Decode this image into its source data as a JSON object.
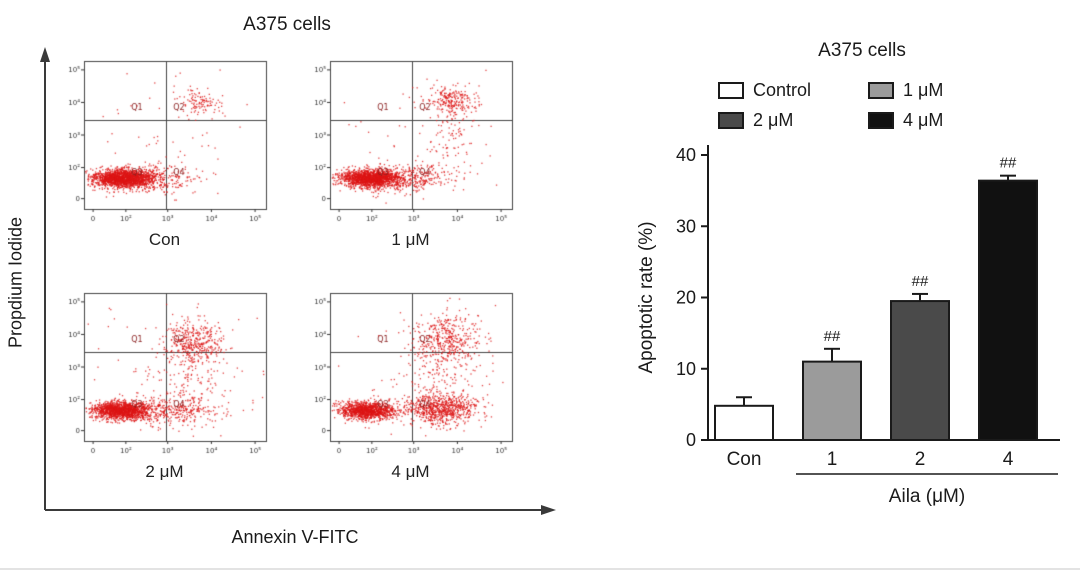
{
  "chart_data": [
    {
      "type": "scatter",
      "title": "A375 cells",
      "xlabel": "Annexin V-FITC",
      "ylabel": "Propdium Iodide",
      "x_ticks": [
        "0",
        "10²",
        "10³",
        "10⁴",
        "10⁵"
      ],
      "y_ticks": [
        "0",
        "10²",
        "10³",
        "10⁴",
        "10⁵"
      ],
      "quadrants": [
        "Q1",
        "Q2",
        "Q3",
        "Q4"
      ],
      "point_color": "#dd1515",
      "subplots": [
        {
          "label": "Con",
          "clusters": [
            {
              "x": 0.21,
              "y": 0.79,
              "sx": 0.085,
              "sy": 0.03,
              "n": 1700
            },
            {
              "x": 0.38,
              "y": 0.79,
              "sx": 0.1,
              "sy": 0.045,
              "n": 260
            },
            {
              "x": 0.63,
              "y": 0.28,
              "sx": 0.055,
              "sy": 0.045,
              "n": 110
            },
            {
              "x": 0.5,
              "y": 0.52,
              "sx": 0.27,
              "sy": 0.26,
              "n": 70
            }
          ]
        },
        {
          "label": "1 μM",
          "clusters": [
            {
              "x": 0.22,
              "y": 0.79,
              "sx": 0.085,
              "sy": 0.03,
              "n": 1600
            },
            {
              "x": 0.44,
              "y": 0.79,
              "sx": 0.12,
              "sy": 0.05,
              "n": 320
            },
            {
              "x": 0.67,
              "y": 0.27,
              "sx": 0.07,
              "sy": 0.05,
              "n": 230
            },
            {
              "x": 0.66,
              "y": 0.5,
              "sx": 0.07,
              "sy": 0.16,
              "n": 90
            },
            {
              "x": 0.5,
              "y": 0.52,
              "sx": 0.27,
              "sy": 0.26,
              "n": 60
            }
          ]
        },
        {
          "label": "2 μM",
          "clusters": [
            {
              "x": 0.2,
              "y": 0.79,
              "sx": 0.08,
              "sy": 0.03,
              "n": 1400
            },
            {
              "x": 0.47,
              "y": 0.79,
              "sx": 0.13,
              "sy": 0.05,
              "n": 380
            },
            {
              "x": 0.6,
              "y": 0.33,
              "sx": 0.08,
              "sy": 0.075,
              "n": 380
            },
            {
              "x": 0.58,
              "y": 0.55,
              "sx": 0.09,
              "sy": 0.15,
              "n": 140
            },
            {
              "x": 0.5,
              "y": 0.5,
              "sx": 0.28,
              "sy": 0.27,
              "n": 60
            }
          ]
        },
        {
          "label": "4 μM",
          "clusters": [
            {
              "x": 0.2,
              "y": 0.79,
              "sx": 0.078,
              "sy": 0.03,
              "n": 1200
            },
            {
              "x": 0.6,
              "y": 0.78,
              "sx": 0.105,
              "sy": 0.05,
              "n": 750
            },
            {
              "x": 0.63,
              "y": 0.31,
              "sx": 0.09,
              "sy": 0.085,
              "n": 380
            },
            {
              "x": 0.62,
              "y": 0.54,
              "sx": 0.1,
              "sy": 0.16,
              "n": 170
            },
            {
              "x": 0.5,
              "y": 0.5,
              "sx": 0.28,
              "sy": 0.27,
              "n": 70
            }
          ]
        }
      ]
    },
    {
      "type": "bar",
      "title": "A375 cells",
      "ylabel": "Apoptotic rate (%)",
      "ylim": [
        0,
        40
      ],
      "yticks": [
        0,
        10,
        20,
        30,
        40
      ],
      "categories": [
        "Con",
        "1",
        "2",
        "4"
      ],
      "values": [
        4.8,
        11.0,
        19.5,
        36.4
      ],
      "errors": [
        1.2,
        1.8,
        1.0,
        0.7
      ],
      "annotations": [
        "",
        "##",
        "##",
        "##"
      ],
      "bar_colors": [
        "#ffffff",
        "#9b9b9b",
        "#4a4a4a",
        "#111111"
      ],
      "legend": [
        {
          "label": "Control",
          "color": "#ffffff"
        },
        {
          "label": "1 μM",
          "color": "#9b9b9b"
        },
        {
          "label": "2 μM",
          "color": "#4a4a4a"
        },
        {
          "label": "4 μM",
          "color": "#111111"
        }
      ],
      "group_label": "Aila (μM)",
      "group_span": [
        "1",
        "4"
      ],
      "grid": false,
      "legend_position": "top"
    }
  ]
}
